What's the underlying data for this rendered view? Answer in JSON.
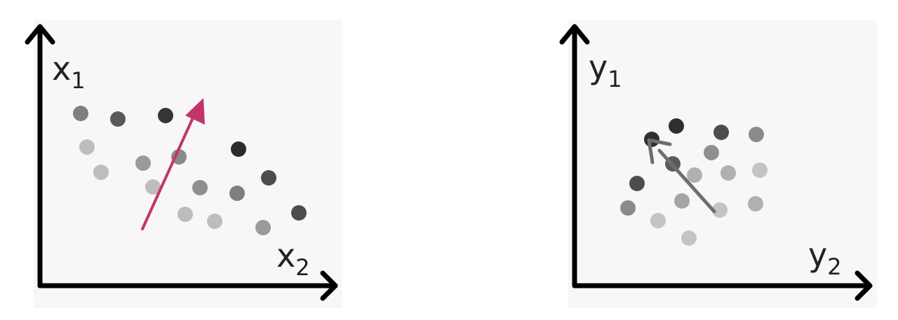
{
  "colors": {
    "panel_bg": "#f7f7f7",
    "axis": "#000000",
    "left_arrow": "#c2356b",
    "right_arrow": "#6e6e6e"
  },
  "left_panel": {
    "y_axis_label": "x",
    "y_axis_subscript": "1",
    "x_axis_label": "x",
    "x_axis_subscript": "2"
  },
  "right_panel": {
    "y_axis_label": "y",
    "y_axis_subscript": "1",
    "x_axis_label": "y",
    "x_axis_subscript": "2"
  }
}
